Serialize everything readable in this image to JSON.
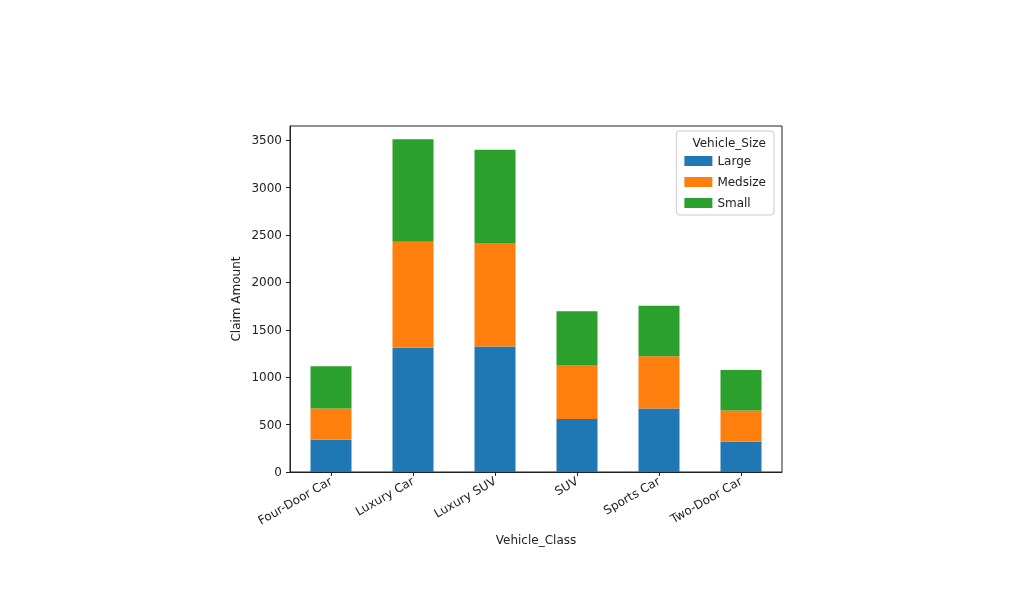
{
  "chart_data": {
    "type": "bar",
    "stacked": true,
    "xlabel": "Vehicle_Class",
    "ylabel": "Claim Amount",
    "legend_title": "Vehicle_Size",
    "legend": "top right",
    "grid": false,
    "categories": [
      "Four-Door Car",
      "Luxury Car",
      "Luxury SUV",
      "SUV",
      "Sports Car",
      "Two-Door Car"
    ],
    "ylim": [
      0,
      3650
    ],
    "yticks": [
      0,
      500,
      1000,
      1500,
      2000,
      2500,
      3000,
      3500
    ],
    "series": [
      {
        "name": "Large",
        "color": "#1f77b4",
        "values": [
          340,
          1310,
          1325,
          560,
          670,
          320
        ]
      },
      {
        "name": "Medsize",
        "color": "#ff7f0e",
        "values": [
          330,
          1120,
          1090,
          570,
          550,
          330
        ]
      },
      {
        "name": "Small",
        "color": "#2ca02c",
        "values": [
          445,
          1080,
          985,
          565,
          535,
          425
        ]
      }
    ]
  }
}
